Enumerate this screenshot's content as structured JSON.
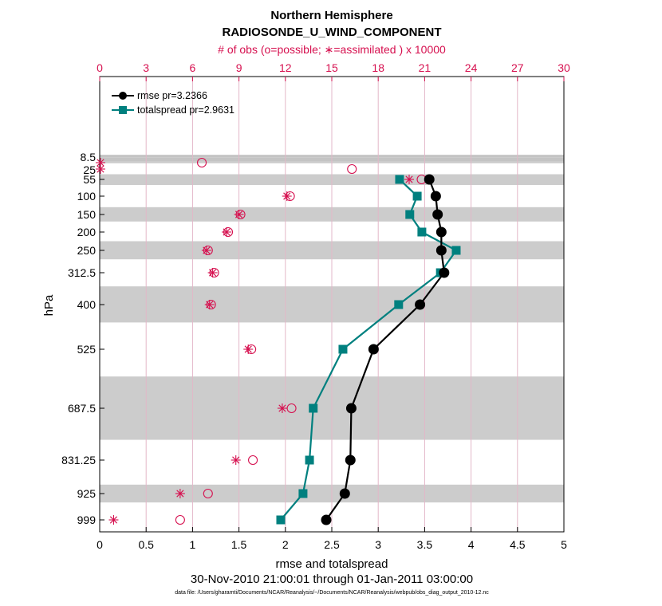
{
  "titles": {
    "line1": "Northern Hemisphere",
    "line2": "RADIOSONDE_U_WIND_COMPONENT",
    "obs_axis_label": "# of obs (o=possible; ∗=assimilated ) x 10000"
  },
  "footer": {
    "xlabel": "rmse and totalspread",
    "date_range": "30-Nov-2010 21:00:01 through 01-Jan-2011 03:00:00",
    "data_file": "data file: /Users/gharamti/Documents/NCAR/Reanalysis/~/Documents/NCAR/Reanalysis/webpub/obs_diag_output_2010-12.nc"
  },
  "colors": {
    "rmse": "#000000",
    "spread": "#00807f",
    "obs": "#d6104f",
    "band": "#cccccc",
    "grid": "#e3b7c8"
  },
  "chart_data": {
    "type": "line",
    "ylabel": "hPa",
    "xlabel": "rmse and totalspread",
    "xlim": [
      0,
      5
    ],
    "x_ticks": [
      "0",
      "0.5",
      "1",
      "1.5",
      "2",
      "2.5",
      "3",
      "3.5",
      "4",
      "4.5",
      "5"
    ],
    "top_axis": {
      "label": "# of obs (o=possible; ∗=assimilated ) x 10000",
      "lim": [
        0,
        30
      ],
      "ticks": [
        "0",
        "3",
        "6",
        "9",
        "12",
        "15",
        "18",
        "21",
        "24",
        "27",
        "30"
      ]
    },
    "y_ticks": [
      "8.5",
      "25",
      "55",
      "100",
      "150",
      "200",
      "250",
      "312.5",
      "400",
      "525",
      "687.5",
      "831.25",
      "925",
      "999"
    ],
    "y_axis": "pressure levels, reversed (top = low pressure), log-like spacing",
    "bands": [
      [
        1,
        10
      ],
      [
        40,
        70
      ],
      [
        130,
        170
      ],
      [
        225,
        275
      ],
      [
        350,
        450
      ],
      [
        600,
        775
      ],
      [
        900,
        950
      ]
    ],
    "series": [
      {
        "name": "rmse pr=3.2366",
        "marker": "circle",
        "levels": [
          55,
          100,
          150,
          200,
          250,
          312.5,
          400,
          525,
          687.5,
          831.25,
          925,
          999
        ],
        "values": [
          3.55,
          3.62,
          3.64,
          3.68,
          3.68,
          3.71,
          3.45,
          2.95,
          2.71,
          2.7,
          2.64,
          2.44
        ]
      },
      {
        "name": "totalspread pr=2.9631",
        "marker": "square",
        "levels": [
          55,
          100,
          150,
          200,
          250,
          312.5,
          400,
          525,
          687.5,
          831.25,
          925,
          999
        ],
        "values": [
          3.23,
          3.42,
          3.34,
          3.47,
          3.84,
          3.67,
          3.22,
          2.62,
          2.3,
          2.26,
          2.19,
          1.95
        ]
      }
    ],
    "obs_possible": {
      "marker": "circle-open",
      "levels": [
        8.5,
        25,
        55,
        100,
        150,
        200,
        250,
        312.5,
        400,
        525,
        687.5,
        831.25,
        925,
        999
      ],
      "values": [
        6.6,
        16.3,
        20.8,
        12.3,
        9.1,
        8.3,
        7.0,
        7.4,
        7.2,
        9.8,
        12.4,
        9.9,
        7.0,
        5.2
      ]
    },
    "obs_assimilated": {
      "marker": "asterisk",
      "levels": [
        8.5,
        25,
        55,
        100,
        150,
        200,
        250,
        312.5,
        400,
        525,
        687.5,
        831.25,
        925,
        999
      ],
      "values": [
        0.05,
        0.05,
        20.0,
        12.1,
        9.0,
        8.2,
        6.9,
        7.3,
        7.1,
        9.6,
        11.8,
        8.8,
        5.2,
        0.9
      ]
    }
  }
}
